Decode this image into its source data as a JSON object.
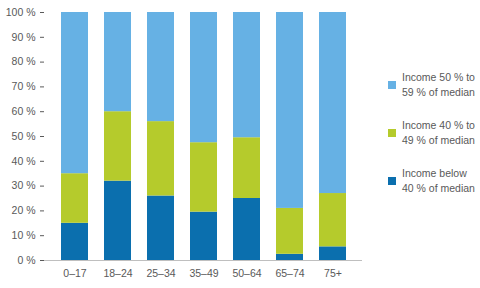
{
  "chart_data": {
    "type": "bar",
    "stacked": true,
    "legend": "right",
    "grid": false,
    "categories": [
      "0–17",
      "18–24",
      "25–34",
      "35–49",
      "50–64",
      "65–74",
      "75+"
    ],
    "series": [
      {
        "name": "Income below 40 % of median",
        "color": "#0b6fae",
        "values": [
          15,
          32,
          26,
          19.5,
          25,
          2.5,
          5.5
        ]
      },
      {
        "name": "Income 40 % to 49 % of median",
        "color": "#b5cb2c",
        "values": [
          20,
          28,
          30,
          28,
          24.5,
          18.5,
          21.5
        ]
      },
      {
        "name": "Income 50 % to 59 % of median",
        "color": "#66b1e4",
        "values": [
          65,
          40,
          44,
          52.5,
          50.5,
          79,
          73
        ]
      }
    ],
    "ylim": [
      0,
      100
    ],
    "yticks": [
      {
        "value": 0,
        "label": "0 %"
      },
      {
        "value": 10,
        "label": "10 %"
      },
      {
        "value": 20,
        "label": "20 %"
      },
      {
        "value": 30,
        "label": "30 %"
      },
      {
        "value": 40,
        "label": "40 %"
      },
      {
        "value": 50,
        "label": "50 %"
      },
      {
        "value": 60,
        "label": "60 %"
      },
      {
        "value": 70,
        "label": "70 %"
      },
      {
        "value": 80,
        "label": "80 %"
      },
      {
        "value": 90,
        "label": "90 %"
      },
      {
        "value": 100,
        "label": "100 %"
      }
    ]
  }
}
